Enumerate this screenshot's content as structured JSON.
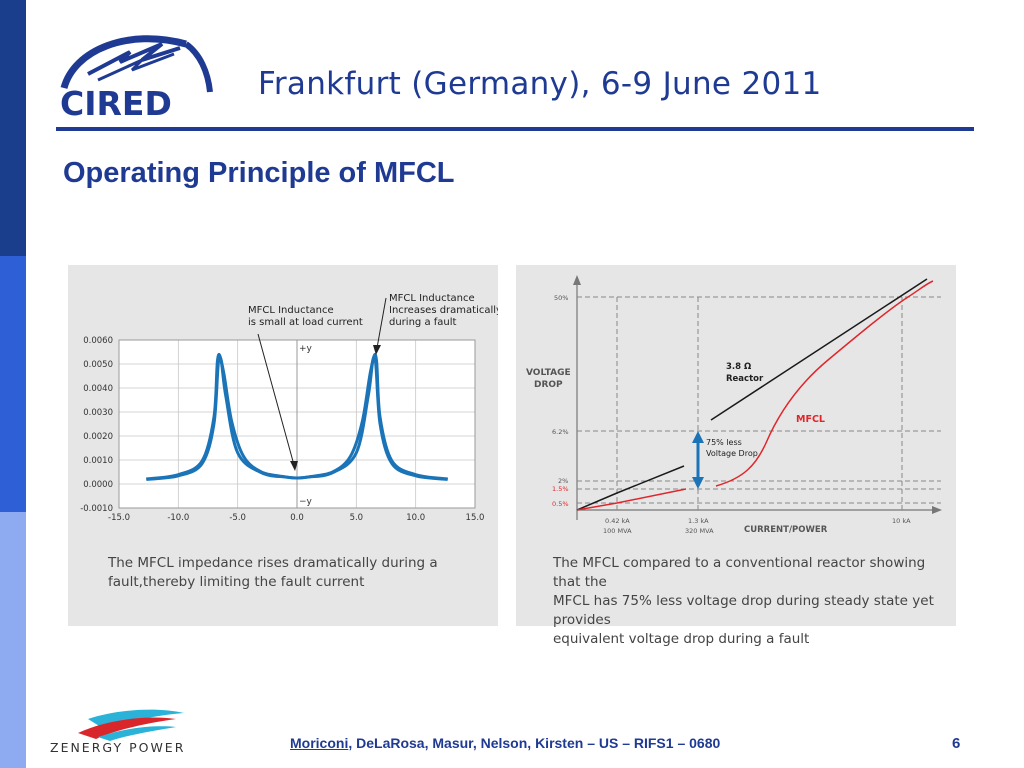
{
  "header": {
    "logo_text": "CIRED",
    "conference": "Frankfurt (Germany), 6-9 June 2011",
    "slide_title": "Operating Principle of MFCL"
  },
  "chart_data": [
    {
      "type": "line",
      "ylim": [
        -0.001,
        0.006
      ],
      "xlim": [
        -15.0,
        15.0
      ],
      "x_ticks": [
        "-15.0",
        "-10.0",
        "-5.0",
        "0.0",
        "5.0",
        "10.0",
        "15.0"
      ],
      "y_ticks": [
        "-0.0010",
        "0.0000",
        "0.0010",
        "0.0020",
        "0.0030",
        "0.0040",
        "0.0050",
        "0.0060"
      ],
      "axis_labels": {
        "top": "+y",
        "bottom": "−y"
      },
      "grid": true,
      "series_color": "#1b74b8",
      "series": [
        {
          "x": [
            -12.7,
            -10,
            -8,
            -7,
            -6.7,
            -6.4,
            -6,
            -5,
            -3,
            -1,
            0,
            1,
            3,
            5,
            6,
            6.4,
            6.7,
            7,
            8,
            10,
            12.7
          ],
          "values": [
            0.00021,
            0.00039,
            0.00096,
            0.00278,
            0.00515,
            0.00516,
            0.00366,
            0.0013,
            0.00047,
            0.00029,
            0.00025,
            0.00029,
            0.00047,
            0.0013,
            0.00366,
            0.00516,
            0.00515,
            0.00278,
            0.00096,
            0.00039,
            0.00021
          ]
        },
        {
          "x": [
            -12.7,
            -10,
            -8,
            -7,
            -6.6,
            -6.2,
            -5.5,
            -4.5,
            -3,
            -1,
            0,
            1,
            3,
            4.5,
            5.5,
            6.2,
            6.6,
            7,
            8,
            10,
            12.7
          ],
          "values": [
            0.00019,
            0.00034,
            0.00085,
            0.0025,
            0.00515,
            0.0047,
            0.0026,
            0.00115,
            0.0005,
            0.0003,
            0.00025,
            0.0003,
            0.0005,
            0.00115,
            0.0026,
            0.0047,
            0.00515,
            0.0025,
            0.00085,
            0.00034,
            0.00019
          ]
        }
      ],
      "annotations": [
        {
          "text": [
            "MFCL Inductance",
            "is small at load current"
          ]
        },
        {
          "text": [
            "MFCL Inductance",
            "Increases dramatically",
            "during a fault"
          ]
        }
      ],
      "caption": [
        "The MFCL impedance rises dramatically during a",
        "fault,thereby limiting the fault current"
      ]
    },
    {
      "type": "line",
      "xlabel": "CURRENT/POWER",
      "ylabel": [
        "VOLTAGE",
        "DROP"
      ],
      "y_levels": [
        {
          "label": "50%",
          "color": "#555555"
        },
        {
          "label": "6.2%",
          "color": "#555555"
        },
        {
          "label": "2%",
          "color": "#555555"
        },
        {
          "label": "1.5%",
          "color": "#e0262b"
        },
        {
          "label": "0.5%",
          "color": "#e0262b"
        }
      ],
      "x_levels": [
        {
          "label": [
            "0.42 kA",
            "100 MVA"
          ]
        },
        {
          "label": [
            "1.3 kA",
            "320 MVA"
          ]
        },
        {
          "label": [
            "10 kA"
          ]
        }
      ],
      "series": [
        {
          "name": "3.8 Ω Reactor",
          "label_lines": [
            "3.8 Ω",
            "Reactor"
          ],
          "color": "#1a1a1a"
        },
        {
          "name": "MFCL",
          "color": "#e0262b"
        }
      ],
      "arrow_label": [
        "75% less",
        "Voltage Drop"
      ],
      "arrow_color": "#1b74b8",
      "caption": [
        "The MFCL compared to a conventional reactor showing that the",
        "MFCL has 75% less voltage drop during steady state yet provides",
        "equivalent voltage drop during a fault"
      ]
    }
  ],
  "footer": {
    "lead_author": "Moriconi",
    "authors_rest": ", DeLaRosa, Masur, Nelson, Kirsten – US – RIFS1 – 0680",
    "company": "ZENERGY POWER",
    "page": "6"
  }
}
